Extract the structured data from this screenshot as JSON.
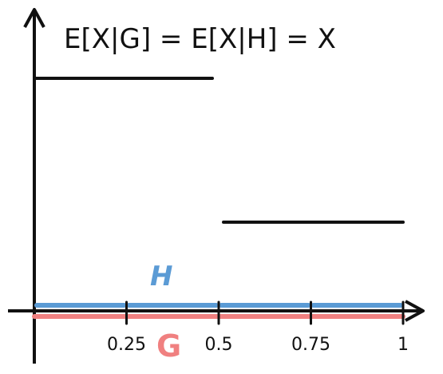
{
  "diagram": {
    "title": "E[X|G] = E[X|H] = X",
    "step_function": {
      "segments": [
        {
          "x_start": 0,
          "x_end": 0.5,
          "level": "high"
        },
        {
          "x_start": 0.5,
          "x_end": 1,
          "level": "low"
        }
      ]
    },
    "partitions": {
      "H": {
        "label": "H",
        "color": "#5b9bd5",
        "intervals": [
          [
            0,
            0.25
          ],
          [
            0.25,
            0.5
          ],
          [
            0.5,
            0.75
          ],
          [
            0.75,
            1
          ]
        ]
      },
      "G": {
        "label": "G",
        "color": "#f08080",
        "intervals": [
          [
            0,
            1
          ]
        ]
      }
    },
    "x_ticks": [
      {
        "value": 0.25,
        "label": "0.25"
      },
      {
        "value": 0.5,
        "label": "0.5"
      },
      {
        "value": 0.75,
        "label": "0.75"
      },
      {
        "value": 1,
        "label": "1"
      }
    ],
    "colors": {
      "ink": "#111111",
      "H": "#5b9bd5",
      "G": "#f08080"
    }
  }
}
